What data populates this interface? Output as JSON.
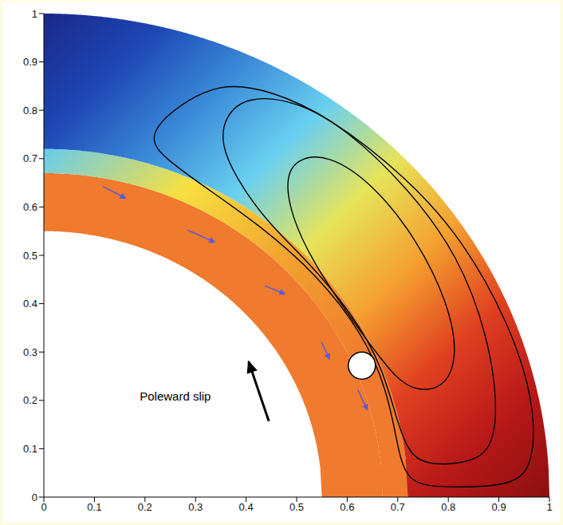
{
  "chart_data": {
    "type": "field",
    "xlim": [
      0,
      1
    ],
    "ylim": [
      0,
      1
    ],
    "xticks": [
      0,
      0.1,
      0.2,
      0.3,
      0.4,
      0.5,
      0.6,
      0.7,
      0.8,
      0.9,
      1
    ],
    "yticks": [
      0,
      0.1,
      0.2,
      0.3,
      0.4,
      0.5,
      0.6,
      0.7,
      0.8,
      0.9,
      1
    ],
    "regions": [
      {
        "r_inner": 0.55,
        "r_outer": 0.67,
        "color": "#f07a2e"
      },
      {
        "r_inner": 0.67,
        "r_outer": 0.72,
        "colors": [
          "#66ccf0",
          "#f6e040",
          "#f2a030",
          "#f07a2e",
          "#f07a2e"
        ]
      },
      {
        "r_inner": 0.72,
        "r_outer": 1,
        "colors": [
          "#1a2888",
          "#1e46b4",
          "#3a8ad8",
          "#6ad0f0",
          "#e6e45a",
          "#f5a030",
          "#e04020",
          "#b81818",
          "#8c1010"
        ]
      }
    ],
    "streamlines": [
      {
        "color": "#000000",
        "x": [
          0.205,
          0.25,
          0.35,
          0.45,
          0.56,
          0.72,
          0.83,
          0.92,
          0.97,
          0.97,
          0.93,
          0.8,
          0.72,
          0.7,
          0.68,
          0.63,
          0.54,
          0.43,
          0.32,
          0.24
        ],
        "y": [
          0.742,
          0.8,
          0.86,
          0.84,
          0.79,
          0.66,
          0.53,
          0.36,
          0.2,
          0.07,
          0.022,
          0.02,
          0.025,
          0.1,
          0.22,
          0.34,
          0.46,
          0.56,
          0.64,
          0.7
        ]
      },
      {
        "color": "#000000",
        "x": [
          0.357,
          0.4,
          0.5,
          0.6,
          0.72,
          0.82,
          0.88,
          0.9,
          0.88,
          0.8,
          0.73,
          0.7,
          0.67,
          0.61,
          0.52,
          0.44,
          0.38,
          0.35
        ],
        "y": [
          0.786,
          0.83,
          0.82,
          0.76,
          0.64,
          0.5,
          0.33,
          0.17,
          0.08,
          0.066,
          0.07,
          0.15,
          0.27,
          0.38,
          0.49,
          0.57,
          0.66,
          0.73
        ]
      },
      {
        "color": "#000000",
        "x": [
          0.477,
          0.5,
          0.56,
          0.65,
          0.74,
          0.8,
          0.82,
          0.79,
          0.72,
          0.67,
          0.6,
          0.53,
          0.49
        ],
        "y": [
          0.659,
          0.7,
          0.71,
          0.65,
          0.53,
          0.4,
          0.29,
          0.22,
          0.22,
          0.28,
          0.38,
          0.49,
          0.58
        ]
      }
    ],
    "flow_arrows": [
      {
        "color": "#5a5ad8",
        "x": [
          0.117,
          0.162
        ],
        "y": [
          0.642,
          0.618
        ]
      },
      {
        "color": "#5a5ad8",
        "x": [
          0.285,
          0.338
        ],
        "y": [
          0.552,
          0.527
        ]
      },
      {
        "color": "#5a5ad8",
        "x": [
          0.437,
          0.477
        ],
        "y": [
          0.437,
          0.42
        ]
      },
      {
        "color": "#5a5ad8",
        "x": [
          0.549,
          0.565
        ],
        "y": [
          0.321,
          0.285
        ]
      },
      {
        "color": "#5a5ad8",
        "x": [
          0.621,
          0.64
        ],
        "y": [
          0.222,
          0.18
        ]
      }
    ],
    "slip_arrow": {
      "color": "#000000",
      "x": [
        0.445,
        0.405
      ],
      "y": [
        0.157,
        0.28
      ]
    },
    "inclusion": {
      "x": 0.629,
      "y": 0.272
    },
    "annotations": [
      {
        "text": "Poleward slip",
        "x": 0.26,
        "y": 0.206
      }
    ]
  }
}
